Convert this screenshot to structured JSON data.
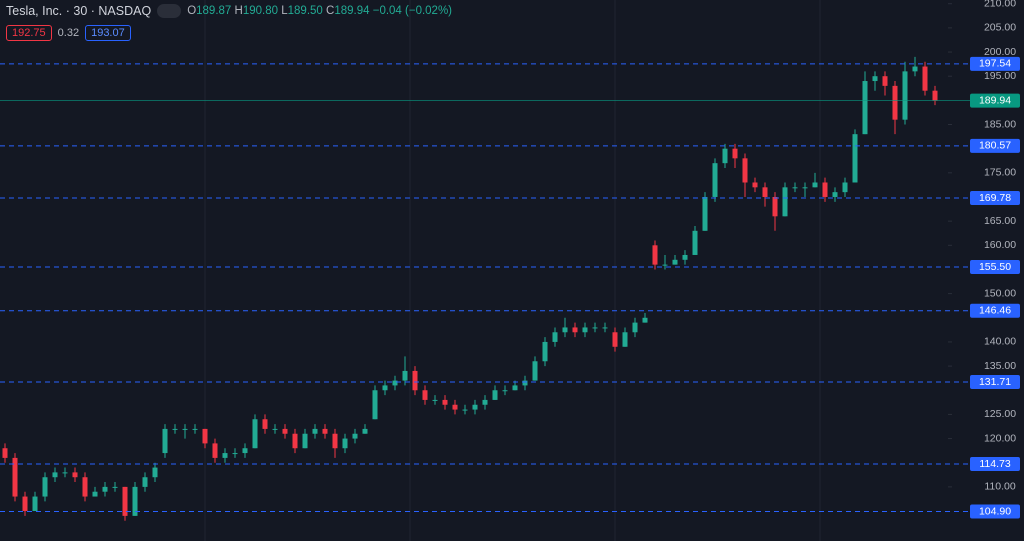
{
  "header": {
    "symbol": "Tesla, Inc. · 30 · NASDAQ",
    "ohlc": [
      {
        "key": "O",
        "value": "189.87"
      },
      {
        "key": "H",
        "value": "190.80"
      },
      {
        "key": "L",
        "value": "189.50"
      },
      {
        "key": "C",
        "value": "189.94"
      }
    ],
    "change": "−0.04 (−0.02%)",
    "bid": "192.75",
    "spread": "0.32",
    "ask": "193.07"
  },
  "chart_data": {
    "type": "candlestick",
    "up_color": "#22ab94",
    "down_color": "#f23645",
    "ylim": [
      98.8,
      210.77
    ],
    "yticks": [
      {
        "value": 210,
        "label": "210.00"
      },
      {
        "value": 205,
        "label": "205.00"
      },
      {
        "value": 200,
        "label": "200.00"
      },
      {
        "value": 195,
        "label": "195.00"
      },
      {
        "value": 185,
        "label": "185.00"
      },
      {
        "value": 175,
        "label": "175.00"
      },
      {
        "value": 165,
        "label": "165.00"
      },
      {
        "value": 160,
        "label": "160.00"
      },
      {
        "value": 150,
        "label": "150.00"
      },
      {
        "value": 140,
        "label": "140.00"
      },
      {
        "value": 135,
        "label": "135.00"
      },
      {
        "value": 125,
        "label": "125.00"
      },
      {
        "value": 120,
        "label": "120.00"
      },
      {
        "value": 110,
        "label": "110.00"
      }
    ],
    "levels": [
      {
        "value": 197.54,
        "label": "197.54"
      },
      {
        "value": 180.57,
        "label": "180.57"
      },
      {
        "value": 169.78,
        "label": "169.78"
      },
      {
        "value": 155.5,
        "label": "155.50"
      },
      {
        "value": 146.46,
        "label": "146.46"
      },
      {
        "value": 131.71,
        "label": "131.71"
      },
      {
        "value": 114.73,
        "label": "114.73"
      },
      {
        "value": 104.9,
        "label": "104.90"
      }
    ],
    "level_color": "#2962ff",
    "last_price": 189.94,
    "last_price_color": "#089981",
    "series": [
      {
        "name": "Tesla, Inc.",
        "values": [
          [
            118,
            119,
            115,
            116
          ],
          [
            116,
            117,
            107,
            108
          ],
          [
            108,
            109,
            104,
            105
          ],
          [
            105,
            109,
            105,
            108
          ],
          [
            108,
            113,
            107,
            112
          ],
          [
            112,
            114,
            111,
            113
          ],
          [
            113,
            114,
            112,
            113
          ],
          [
            113,
            114,
            111,
            112
          ],
          [
            112,
            113,
            107,
            108
          ],
          [
            108,
            110,
            108,
            109
          ],
          [
            109,
            111,
            108,
            110
          ],
          [
            110,
            111,
            109,
            110
          ],
          [
            110,
            110,
            103,
            104
          ],
          [
            104,
            111,
            104,
            110
          ],
          [
            110,
            113,
            109,
            112
          ],
          [
            112,
            115,
            111,
            114
          ],
          [
            117,
            123,
            116,
            122
          ],
          [
            122,
            123,
            121,
            122
          ],
          [
            122,
            123,
            120,
            122
          ],
          [
            122,
            123,
            121,
            122
          ],
          [
            122,
            122,
            118,
            119
          ],
          [
            119,
            120,
            115,
            116
          ],
          [
            116,
            118,
            115,
            117
          ],
          [
            117,
            118,
            116,
            117
          ],
          [
            117,
            119,
            116,
            118
          ],
          [
            118,
            125,
            118,
            124
          ],
          [
            124,
            125,
            121,
            122
          ],
          [
            122,
            123,
            121,
            122
          ],
          [
            122,
            123,
            120,
            121
          ],
          [
            121,
            122,
            117,
            118
          ],
          [
            118,
            122,
            118,
            121
          ],
          [
            121,
            123,
            120,
            122
          ],
          [
            122,
            123,
            120,
            121
          ],
          [
            121,
            122,
            116,
            118
          ],
          [
            118,
            121,
            117,
            120
          ],
          [
            120,
            122,
            119,
            121
          ],
          [
            121,
            123,
            121,
            122
          ],
          [
            124,
            131,
            124,
            130
          ],
          [
            130,
            132,
            129,
            131
          ],
          [
            131,
            133,
            130,
            132
          ],
          [
            132,
            137,
            131,
            134
          ],
          [
            134,
            135,
            129,
            130
          ],
          [
            130,
            131,
            127,
            128
          ],
          [
            128,
            129,
            127,
            128
          ],
          [
            128,
            129,
            126,
            127
          ],
          [
            127,
            128,
            125,
            126
          ],
          [
            126,
            127,
            125,
            126
          ],
          [
            126,
            128,
            125,
            127
          ],
          [
            127,
            129,
            126,
            128
          ],
          [
            128,
            131,
            128,
            130
          ],
          [
            130,
            131,
            129,
            130
          ],
          [
            130,
            132,
            130,
            131
          ],
          [
            131,
            133,
            130,
            132
          ],
          [
            132,
            137,
            132,
            136
          ],
          [
            136,
            141,
            135,
            140
          ],
          [
            140,
            143,
            139,
            142
          ],
          [
            142,
            145,
            141,
            143
          ],
          [
            143,
            144,
            141,
            142
          ],
          [
            142,
            144,
            141,
            143
          ],
          [
            143,
            144,
            142,
            143
          ],
          [
            143,
            144,
            142,
            143
          ],
          [
            142,
            143,
            138,
            139
          ],
          [
            139,
            143,
            139,
            142
          ],
          [
            142,
            145,
            141,
            144
          ],
          [
            144,
            146,
            144,
            145
          ],
          [
            160,
            161,
            155,
            156
          ],
          [
            156,
            158,
            155,
            156
          ],
          [
            156,
            158,
            156,
            157
          ],
          [
            157,
            159,
            156,
            158
          ],
          [
            158,
            164,
            158,
            163
          ],
          [
            163,
            171,
            163,
            170
          ],
          [
            170,
            178,
            169,
            177
          ],
          [
            177,
            181,
            176,
            180
          ],
          [
            180,
            181,
            176,
            178
          ],
          [
            178,
            179,
            170,
            173
          ],
          [
            173,
            174,
            171,
            172
          ],
          [
            172,
            173,
            168,
            170
          ],
          [
            170,
            171,
            163,
            166
          ],
          [
            166,
            173,
            166,
            172
          ],
          [
            172,
            173,
            171,
            172
          ],
          [
            172,
            173,
            170,
            172
          ],
          [
            172,
            175,
            172,
            173
          ],
          [
            173,
            174,
            169,
            170
          ],
          [
            170,
            172,
            169,
            171
          ],
          [
            171,
            174,
            170,
            173
          ],
          [
            173,
            184,
            173,
            183
          ],
          [
            183,
            196,
            183,
            194
          ],
          [
            194,
            196,
            192,
            195
          ],
          [
            195,
            196,
            191,
            193
          ],
          [
            193,
            194,
            183,
            186
          ],
          [
            186,
            198,
            185,
            196
          ],
          [
            196,
            199,
            195,
            197
          ],
          [
            197,
            198,
            191,
            192
          ],
          [
            192,
            193,
            189,
            190
          ]
        ]
      }
    ]
  }
}
